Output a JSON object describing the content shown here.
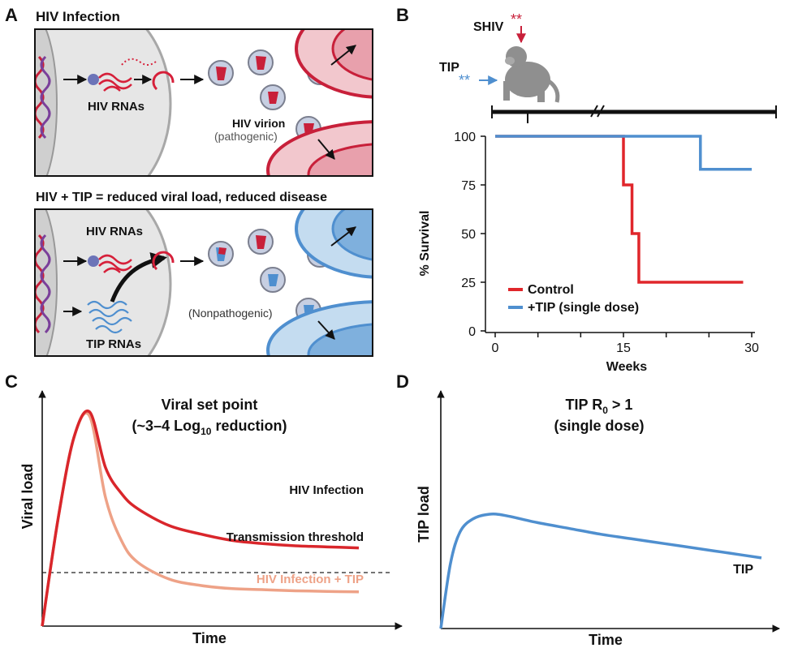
{
  "panelA": {
    "letter": "A",
    "top_title": "HIV Infection",
    "top_rna_label": "HIV RNAs",
    "top_virion_label": "HIV virion",
    "top_virion_sub": "(pathogenic)",
    "bottom_title": "HIV + TIP = reduced viral load, reduced disease",
    "bottom_hiv_rna_label": "HIV RNAs",
    "bottom_tip_rna_label": "TIP RNAs",
    "bottom_virion_label": "(Nonpathogenic)"
  },
  "panelB": {
    "letter": "B",
    "shiv_label": "SHIV",
    "tip_label": "TIP",
    "chart_data": {
      "type": "line",
      "xlabel": "Weeks",
      "ylabel": "% Survival",
      "xlim": [
        0,
        30
      ],
      "ylim": [
        0,
        100
      ],
      "xticks": [
        0,
        15,
        30
      ],
      "yticks": [
        0,
        25,
        50,
        75,
        100
      ],
      "legend_position": "bottom-left",
      "series": [
        {
          "name": "Control",
          "color": "#e0262b",
          "step": true,
          "x": [
            0,
            15,
            15,
            16,
            16,
            16.8,
            16.8,
            29
          ],
          "y": [
            100,
            100,
            75,
            75,
            50,
            50,
            25,
            25
          ]
        },
        {
          "name": "+TIP (single dose)",
          "color": "#4f8fcf",
          "step": true,
          "x": [
            0,
            24,
            24,
            30
          ],
          "y": [
            100,
            100,
            83,
            83
          ]
        }
      ]
    }
  },
  "panelC": {
    "letter": "C",
    "title_line1": "Viral set point",
    "title_line2_pre": "(~3–4 Log",
    "title_line2_sub": "10",
    "title_line2_post": " reduction)",
    "chart_data": {
      "type": "line",
      "xlabel": "Time",
      "ylabel": "Viral load",
      "threshold_label": "Transmission threshold",
      "series": [
        {
          "name": "HIV Infection",
          "color": "#d9262b",
          "x": [
            0,
            0.05,
            0.1,
            0.15,
            0.2,
            0.25,
            0.3,
            0.4,
            0.5,
            0.6,
            0.7,
            0.8,
            0.9,
            1.0
          ],
          "y": [
            0,
            0.5,
            0.88,
            1.0,
            0.74,
            0.62,
            0.55,
            0.47,
            0.43,
            0.4,
            0.385,
            0.375,
            0.37,
            0.365
          ]
        },
        {
          "name": "HIV Infection + TIP",
          "color": "#eea287",
          "x": [
            0,
            0.05,
            0.1,
            0.15,
            0.2,
            0.25,
            0.3,
            0.4,
            0.5,
            0.6,
            0.7,
            0.8,
            0.9,
            1.0
          ],
          "y": [
            0,
            0.5,
            0.88,
            0.98,
            0.6,
            0.4,
            0.3,
            0.22,
            0.19,
            0.175,
            0.17,
            0.165,
            0.162,
            0.16
          ]
        }
      ],
      "threshold": 0.25
    }
  },
  "panelD": {
    "letter": "D",
    "title_line1_pre": "TIP R",
    "title_line1_sub": "0",
    "title_line1_post": " > 1",
    "title_line2": "(single dose)",
    "chart_data": {
      "type": "line",
      "xlabel": "Time",
      "ylabel": "TIP load",
      "series": [
        {
          "name": "TIP",
          "color": "#4f8fcf",
          "x": [
            0,
            0.03,
            0.06,
            0.1,
            0.15,
            0.2,
            0.3,
            0.4,
            0.5,
            0.6,
            0.7,
            0.8,
            0.9,
            1.0
          ],
          "y": [
            0,
            0.55,
            0.82,
            0.93,
            0.97,
            0.96,
            0.9,
            0.85,
            0.8,
            0.76,
            0.72,
            0.68,
            0.64,
            0.6
          ]
        }
      ]
    }
  }
}
